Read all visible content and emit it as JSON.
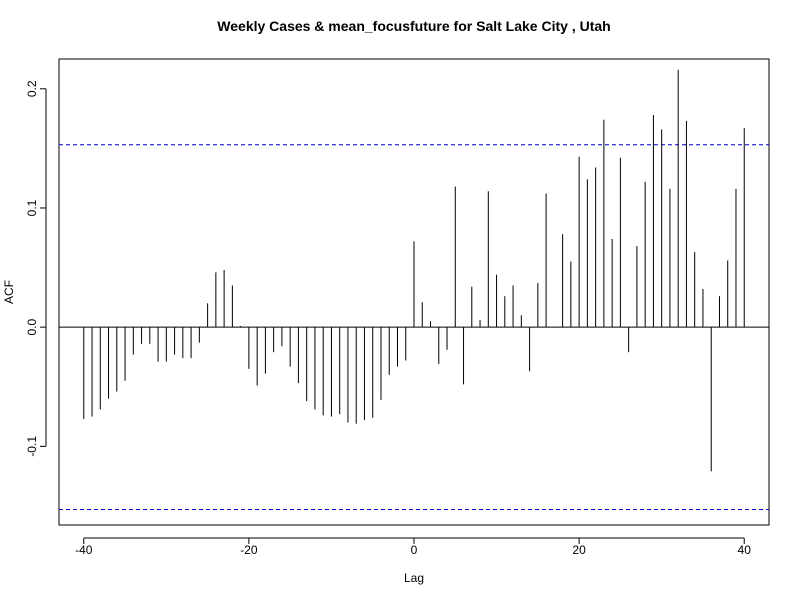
{
  "chart_data": {
    "type": "bar",
    "title": "Weekly Cases & mean_focusfuture for Salt Lake City , Utah",
    "xlabel": "Lag",
    "ylabel": "ACF",
    "xlim": [
      -43,
      43
    ],
    "ylim": [
      -0.166,
      0.225
    ],
    "x_ticks": [
      -40,
      -20,
      0,
      20,
      40
    ],
    "y_ticks": [
      -0.1,
      0.0,
      0.1,
      0.2
    ],
    "x_tick_labels": [
      "-40",
      "-20",
      "0",
      "20",
      "40"
    ],
    "y_tick_labels": [
      "-0.1",
      "0.0",
      "0.1",
      "0.2"
    ],
    "confidence_bound": 0.153,
    "confidence_line_color": "#0000cc",
    "bar_color": "#000000",
    "grid": false,
    "lags": [
      -40,
      -39,
      -38,
      -37,
      -36,
      -35,
      -34,
      -33,
      -32,
      -31,
      -30,
      -29,
      -28,
      -27,
      -26,
      -25,
      -24,
      -23,
      -22,
      -21,
      -20,
      -19,
      -18,
      -17,
      -16,
      -15,
      -14,
      -13,
      -12,
      -11,
      -10,
      -9,
      -8,
      -7,
      -6,
      -5,
      -4,
      -3,
      -2,
      -1,
      0,
      1,
      2,
      3,
      4,
      5,
      6,
      7,
      8,
      9,
      10,
      11,
      12,
      13,
      14,
      15,
      16,
      17,
      18,
      19,
      20,
      21,
      22,
      23,
      24,
      25,
      26,
      27,
      28,
      29,
      30,
      31,
      32,
      33,
      34,
      35,
      36,
      37,
      38,
      39,
      40
    ],
    "values": [
      -0.077,
      -0.075,
      -0.069,
      -0.06,
      -0.054,
      -0.045,
      -0.023,
      -0.014,
      -0.014,
      -0.029,
      -0.029,
      -0.023,
      -0.026,
      -0.026,
      -0.013,
      0.02,
      0.046,
      0.048,
      0.035,
      0.001,
      -0.035,
      -0.049,
      -0.039,
      -0.021,
      -0.016,
      -0.033,
      -0.047,
      -0.062,
      -0.069,
      -0.074,
      -0.075,
      -0.073,
      -0.08,
      -0.081,
      -0.078,
      -0.076,
      -0.061,
      -0.04,
      -0.033,
      -0.028,
      0.072,
      0.021,
      0.005,
      -0.031,
      -0.019,
      0.118,
      -0.048,
      0.034,
      0.006,
      0.114,
      0.044,
      0.026,
      0.035,
      0.01,
      -0.037,
      0.037,
      0.112,
      0.0,
      0.078,
      0.055,
      0.143,
      0.124,
      0.134,
      0.174,
      0.074,
      0.142,
      -0.021,
      0.068,
      0.122,
      0.178,
      0.166,
      0.116,
      0.216,
      0.173,
      0.063,
      0.032,
      -0.121,
      0.026,
      0.056,
      0.116,
      0.167
    ]
  }
}
